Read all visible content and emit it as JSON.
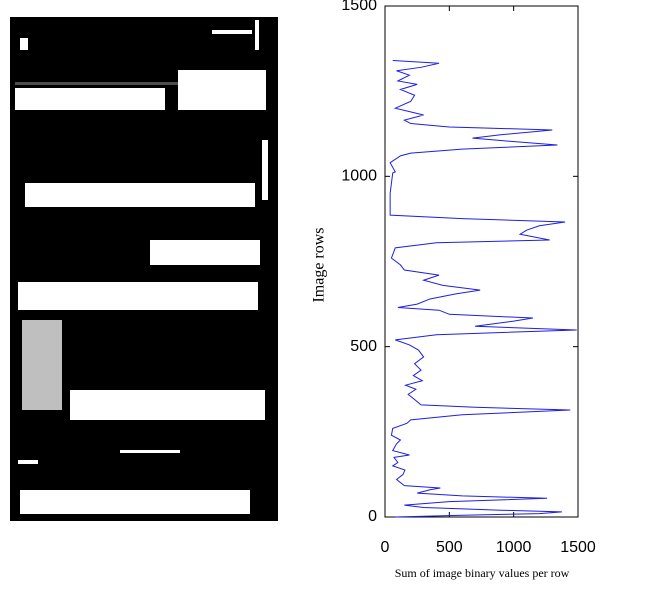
{
  "chart_data": {
    "type": "line",
    "xlabel": "Sum of image binary values per row",
    "ylabel": "Image rows",
    "xlim": [
      0,
      1500
    ],
    "ylim": [
      0,
      1500
    ],
    "xticks": [
      0,
      500,
      1000,
      1500
    ],
    "yticks": [
      0,
      500,
      1000,
      1500
    ],
    "series": [
      {
        "color": "#1f1fe0",
        "x": [
          80,
          600,
          1200,
          1375,
          900,
          300,
          150,
          500,
          1260,
          600,
          250,
          350,
          430,
          150,
          90,
          140,
          155,
          60,
          100,
          70,
          190,
          60,
          90,
          120,
          50,
          60,
          170,
          200,
          600,
          1440,
          700,
          280,
          230,
          180,
          240,
          160,
          290,
          220,
          280,
          230,
          300,
          260,
          190,
          80,
          400,
          1490,
          700,
          1000,
          1150,
          500,
          420,
          100,
          250,
          350,
          550,
          740,
          450,
          300,
          420,
          150,
          120,
          50,
          80,
          400,
          1280,
          1050,
          1100,
          1200,
          1400,
          600,
          40,
          40,
          60,
          80,
          40,
          120,
          200,
          600,
          1340,
          900,
          680,
          900,
          1300,
          500,
          200,
          150,
          300,
          80,
          200,
          230,
          120,
          250,
          100,
          190,
          90,
          280,
          420,
          60
        ],
        "values": [
          0,
          5,
          10,
          15,
          20,
          28,
          35,
          45,
          55,
          62,
          70,
          80,
          85,
          92,
          110,
          125,
          138,
          150,
          160,
          175,
          182,
          195,
          215,
          226,
          240,
          260,
          275,
          285,
          300,
          314,
          322,
          329,
          345,
          360,
          375,
          387,
          400,
          415,
          431,
          450,
          470,
          490,
          505,
          520,
          535,
          549,
          560,
          575,
          584,
          595,
          607,
          615,
          625,
          640,
          655,
          666,
          680,
          695,
          710,
          725,
          740,
          760,
          790,
          805,
          813,
          830,
          842,
          855,
          866,
          876,
          886,
          950,
          1010,
          1013,
          1040,
          1060,
          1068,
          1080,
          1092,
          1105,
          1112,
          1122,
          1136,
          1145,
          1155,
          1165,
          1180,
          1200,
          1220,
          1238,
          1255,
          1270,
          1280,
          1297,
          1310,
          1320,
          1332,
          1340
        ]
      }
    ]
  }
}
